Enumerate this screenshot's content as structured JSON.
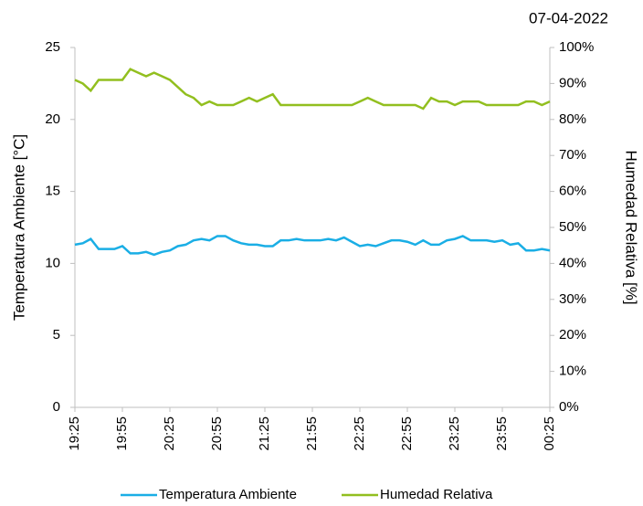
{
  "chart_data": {
    "type": "line",
    "title": "07-04-2022",
    "y_label": "Temperatura Ambiente [°C]",
    "y2_label": "Humedad Relativa [%]",
    "categories": [
      "19:25",
      null,
      null,
      null,
      null,
      null,
      "19:55",
      null,
      null,
      null,
      null,
      null,
      "20:25",
      null,
      null,
      null,
      null,
      null,
      "20:55",
      null,
      null,
      null,
      null,
      null,
      "21:25",
      null,
      null,
      null,
      null,
      null,
      "21:55",
      null,
      null,
      null,
      null,
      null,
      "22:25",
      null,
      null,
      null,
      null,
      null,
      "22:55",
      null,
      null,
      null,
      null,
      null,
      "23:25",
      null,
      null,
      null,
      null,
      null,
      "23:55",
      null,
      null,
      null,
      null,
      null,
      "00:25"
    ],
    "series": [
      {
        "name": "Temperatura Ambiente",
        "color": "#1aaee5",
        "values": [
          11.3,
          11.4,
          11.7,
          11.0,
          11.0,
          11.0,
          11.2,
          10.7,
          10.7,
          10.8,
          10.6,
          10.8,
          10.9,
          11.2,
          11.3,
          11.6,
          11.7,
          11.6,
          11.9,
          11.9,
          11.6,
          11.4,
          11.3,
          11.3,
          11.2,
          11.2,
          11.6,
          11.6,
          11.7,
          11.6,
          11.6,
          11.6,
          11.7,
          11.6,
          11.8,
          11.5,
          11.2,
          11.3,
          11.2,
          11.4,
          11.6,
          11.6,
          11.5,
          11.3,
          11.6,
          11.3,
          11.3,
          11.6,
          11.7,
          11.9,
          11.6,
          11.6,
          11.6,
          11.5,
          11.6,
          11.3,
          11.4,
          10.9,
          10.9,
          11.0,
          10.9
        ]
      },
      {
        "name": "Humedad Relativa",
        "color": "#92bf1f",
        "axis": "y2",
        "values": [
          91,
          90,
          88,
          91,
          91,
          91,
          91,
          94,
          93,
          92,
          93,
          92,
          91,
          89,
          87,
          86,
          84,
          85,
          84,
          84,
          84,
          85,
          86,
          85,
          86,
          87,
          84,
          84,
          84,
          84,
          84,
          84,
          84,
          84,
          84,
          84,
          85,
          86,
          85,
          84,
          84,
          84,
          84,
          84,
          83,
          86,
          85,
          85,
          84,
          85,
          85,
          85,
          84,
          84,
          84,
          84,
          84,
          85,
          85,
          84,
          85
        ]
      }
    ],
    "ylim": [
      0,
      25
    ],
    "yticks": [
      0,
      5,
      10,
      15,
      20,
      25
    ],
    "y2lim": [
      0,
      100
    ],
    "y2ticks": [
      {
        "value": 0,
        "label": "0%"
      },
      {
        "value": 10,
        "label": "10%"
      },
      {
        "value": 20,
        "label": "20%"
      },
      {
        "value": 30,
        "label": "30%"
      },
      {
        "value": 40,
        "label": "40%"
      },
      {
        "value": 50,
        "label": "50%"
      },
      {
        "value": 60,
        "label": "60%"
      },
      {
        "value": 70,
        "label": "70%"
      },
      {
        "value": 80,
        "label": "80%"
      },
      {
        "value": 90,
        "label": "90%"
      },
      {
        "value": 100,
        "label": "100%"
      }
    ],
    "grid": false,
    "legend": "bottom"
  }
}
